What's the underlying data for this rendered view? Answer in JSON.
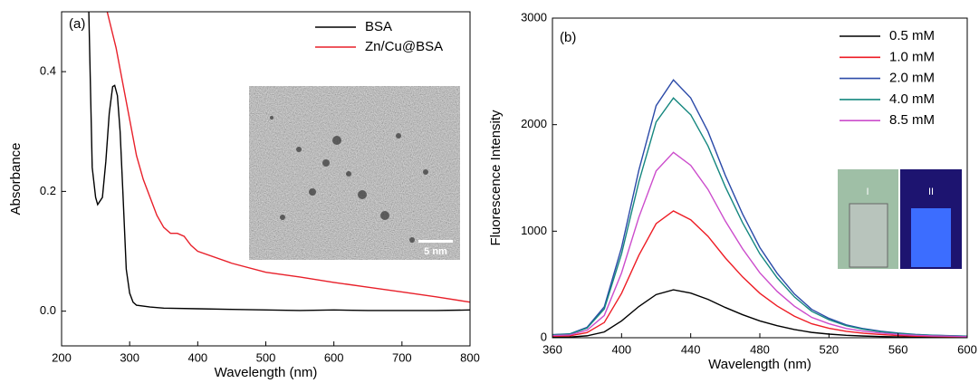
{
  "chart_data": [
    {
      "type": "line",
      "label": "(a)",
      "x_label": "Wavelength (nm)",
      "y_label": "Absorbance",
      "xlim": [
        200,
        800
      ],
      "xticks": [
        200,
        300,
        400,
        500,
        600,
        700,
        800
      ],
      "ylim": [
        -0.058,
        0.5
      ],
      "yticks": [
        {
          "value": 0,
          "label": "0.0"
        },
        0.2,
        0.4
      ],
      "legend_position": "top-right",
      "inset_scale_label": "5 nm",
      "series": [
        {
          "name": "BSA",
          "color": "#000000",
          "x": [
            240,
            245,
            250,
            253,
            260,
            265,
            270,
            275,
            278,
            282,
            286,
            290,
            295,
            300,
            305,
            310,
            330,
            350,
            400,
            450,
            500,
            550,
            600,
            650,
            700,
            750,
            800
          ],
          "values": [
            0.5,
            0.24,
            0.19,
            0.178,
            0.19,
            0.25,
            0.33,
            0.375,
            0.377,
            0.36,
            0.3,
            0.2,
            0.07,
            0.03,
            0.015,
            0.01,
            0.007,
            0.005,
            0.004,
            0.003,
            0.002,
            0.001,
            0.002,
            0.001,
            0.001,
            0.001,
            0.002
          ]
        },
        {
          "name": "Zn/Cu@BSA",
          "color": "#e8202a",
          "x": [
            267,
            280,
            290,
            300,
            310,
            320,
            330,
            340,
            350,
            360,
            370,
            380,
            390,
            400,
            450,
            500,
            550,
            600,
            650,
            700,
            750,
            800
          ],
          "values": [
            0.5,
            0.44,
            0.38,
            0.32,
            0.26,
            0.22,
            0.19,
            0.16,
            0.14,
            0.13,
            0.13,
            0.125,
            0.11,
            0.1,
            0.08,
            0.065,
            0.057,
            0.048,
            0.04,
            0.032,
            0.024,
            0.015
          ]
        }
      ]
    },
    {
      "type": "line",
      "label": "(b)",
      "x_label": "Wavelength (nm)",
      "y_label": "Fluorescence Intensity",
      "xlim": [
        360,
        600
      ],
      "xticks": [
        360,
        400,
        440,
        480,
        520,
        560,
        600
      ],
      "ylim": [
        0,
        3000
      ],
      "yticks": [
        0,
        1000,
        2000,
        3000
      ],
      "legend_position": "top-right",
      "inset_labels": [
        "I",
        "II"
      ],
      "x": [
        360,
        370,
        380,
        390,
        400,
        410,
        420,
        430,
        440,
        450,
        460,
        470,
        480,
        490,
        500,
        510,
        520,
        530,
        540,
        550,
        560,
        570,
        580,
        590,
        600
      ],
      "series": [
        {
          "name": "0.5 mM",
          "color": "#000000",
          "values": [
            5,
            7,
            18,
            54,
            158,
            293,
            405,
            450,
            419,
            360,
            284,
            216,
            158,
            113,
            77,
            50,
            34,
            23,
            16,
            11,
            8,
            6,
            5,
            4,
            3
          ]
        },
        {
          "name": "1.0 mM",
          "color": "#ee1c24",
          "values": [
            14,
            18,
            48,
            143,
            417,
            774,
            1071,
            1190,
            1107,
            952,
            750,
            571,
            417,
            298,
            202,
            131,
            89,
            60,
            42,
            30,
            21,
            15,
            12,
            10,
            7
          ]
        },
        {
          "name": "2.0 mM",
          "color": "#2b4aa8",
          "values": [
            29,
            36,
            97,
            290,
            847,
            1573,
            2178,
            2420,
            2251,
            1936,
            1525,
            1162,
            847,
            605,
            411,
            266,
            182,
            121,
            85,
            61,
            44,
            31,
            24,
            19,
            15
          ]
        },
        {
          "name": "4.0 mM",
          "color": "#15877f",
          "values": [
            27,
            34,
            90,
            270,
            788,
            1463,
            2025,
            2250,
            2093,
            1800,
            1418,
            1080,
            788,
            563,
            383,
            248,
            169,
            113,
            79,
            56,
            41,
            29,
            23,
            18,
            14
          ]
        },
        {
          "name": "8.5 mM",
          "color": "#cc4ccc",
          "values": [
            21,
            26,
            70,
            209,
            609,
            1131,
            1566,
            1740,
            1618,
            1392,
            1096,
            835,
            609,
            435,
            296,
            191,
            131,
            87,
            61,
            44,
            31,
            23,
            17,
            14,
            10
          ]
        }
      ]
    }
  ]
}
